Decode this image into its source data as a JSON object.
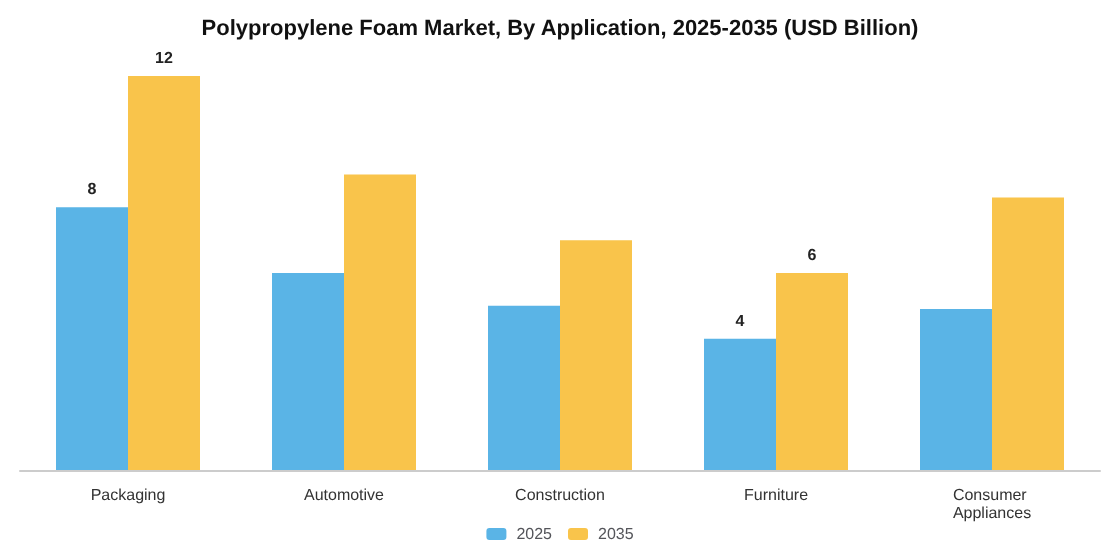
{
  "chart_data": {
    "type": "bar",
    "title": "Polypropylene Foam Market, By Application, 2025-2035 (USD Billion)",
    "categories": [
      "Packaging",
      "Automotive",
      "Construction",
      "Furniture",
      "Consumer Appliances"
    ],
    "series": [
      {
        "name": "2025",
        "color": "#5ab4e6",
        "values": [
          8,
          6,
          5,
          4,
          4.9
        ],
        "value_labels": [
          "8",
          null,
          null,
          "4",
          null
        ]
      },
      {
        "name": "2035",
        "color": "#f9c44b",
        "values": [
          12,
          9,
          7,
          6,
          8.3
        ],
        "value_labels": [
          "12",
          null,
          null,
          "6",
          null
        ]
      }
    ],
    "legend": "bottom"
  }
}
